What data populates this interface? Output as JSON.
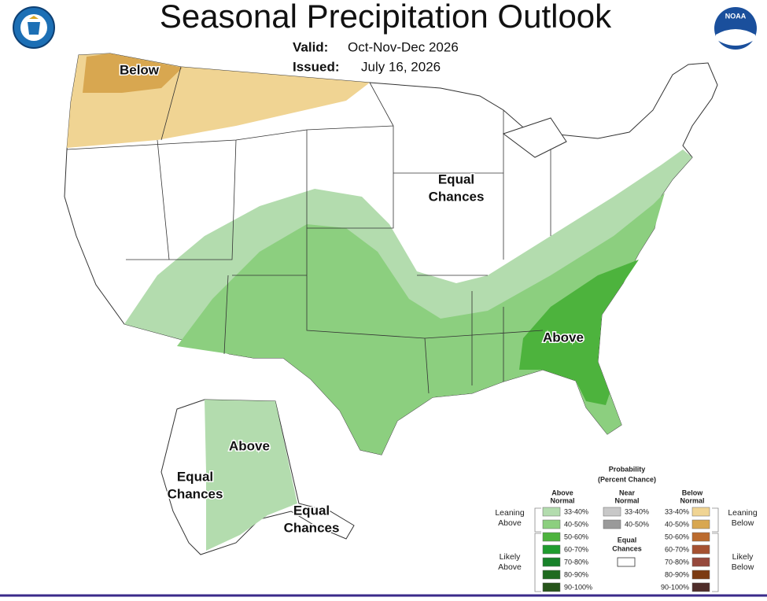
{
  "header": {
    "title": "Seasonal Precipitation Outlook",
    "valid_label": "Valid:",
    "valid_value": "Oct-Nov-Dec 2026",
    "issued_label": "Issued:",
    "issued_value": "July 16, 2026",
    "logo": "NOAA"
  },
  "map_labels": [
    {
      "lines": [
        "Below"
      ]
    },
    {
      "lines": [
        "Equal",
        "Chances"
      ]
    },
    {
      "lines": [
        "Above"
      ]
    },
    {
      "lines": [
        "Above"
      ]
    },
    {
      "lines": [
        "Equal",
        "Chances"
      ]
    },
    {
      "lines": [
        "Equal",
        "Chances"
      ]
    }
  ],
  "legend": {
    "title": "Probability",
    "subtitle": "(Percent Chance)",
    "columns": [
      {
        "heading": [
          "Above",
          "Normal"
        ],
        "items": [
          {
            "label": "33-40%",
            "color": "#b3dcae"
          },
          {
            "label": "40-50%",
            "color": "#8ccf7f"
          },
          {
            "label": "50-60%",
            "color": "#4db33d"
          },
          {
            "label": "60-70%",
            "color": "#1f9c2e"
          },
          {
            "label": "70-80%",
            "color": "#18822a"
          },
          {
            "label": "80-90%",
            "color": "#1f6b1f"
          },
          {
            "label": "90-100%",
            "color": "#26541a"
          }
        ]
      },
      {
        "heading": [
          "Near",
          "Normal"
        ],
        "items": [
          {
            "label": "33-40%",
            "color": "#c8c8c8"
          },
          {
            "label": "40-50%",
            "color": "#9a9a9a"
          }
        ]
      },
      {
        "heading": [
          "Below",
          "Normal"
        ],
        "items": [
          {
            "label": "33-40%",
            "color": "#f0d493"
          },
          {
            "label": "40-50%",
            "color": "#d8a750"
          },
          {
            "label": "50-60%",
            "color": "#bb6b2e"
          },
          {
            "label": "60-70%",
            "color": "#a55131"
          },
          {
            "label": "70-80%",
            "color": "#96493d"
          },
          {
            "label": "80-90%",
            "color": "#7c3b12"
          },
          {
            "label": "90-100%",
            "color": "#4f2d2a"
          }
        ]
      }
    ],
    "equal_chances": [
      "Equal",
      "Chances"
    ],
    "leaning_above": [
      "Leaning",
      "Above"
    ],
    "likely_above": [
      "Likely",
      "Above"
    ],
    "leaning_below": [
      "Leaning",
      "Below"
    ],
    "likely_below": [
      "Likely",
      "Below"
    ]
  }
}
